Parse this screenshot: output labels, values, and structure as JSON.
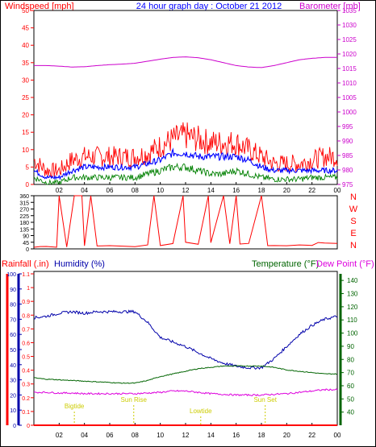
{
  "header": {
    "left_title": "Windspeed [mph]",
    "center_title": "24 hour graph day : October 21 2012",
    "right_title": "Barometer [mb]"
  },
  "middle": {
    "direction_labels": [
      "N",
      "W",
      "S",
      "E",
      "N"
    ]
  },
  "bottom_header": {
    "rainfall_label": "Rainfall (.in)",
    "humidity_label": "Humidity (%)",
    "temperature_label": "Temperature (°F)",
    "dewpoint_label": "Dew Point (°F)"
  },
  "events": [
    {
      "label": "Sun Rise",
      "hour": 7.9
    },
    {
      "label": "Sun Set",
      "hour": 18.3
    },
    {
      "label": "Bigtide",
      "hour": 3.2
    },
    {
      "label": "Lowtide",
      "hour": 13.2
    }
  ],
  "colors": {
    "wind_gust": "#ff0000",
    "wind_avg": "#0000ff",
    "wind_low": "#008000",
    "barometer": "#cc00cc",
    "direction": "#ff0000",
    "humidity": "#0000aa",
    "temperature": "#006400",
    "dewpoint": "#dd00dd",
    "rainfall": "#ff0000",
    "event": "#cccc00"
  },
  "chart_data": [
    {
      "type": "line",
      "title": "24 hour graph day : October 21 2012",
      "x_ticks": [
        "02",
        "04",
        "06",
        "08",
        "10",
        "12",
        "14",
        "16",
        "18",
        "20",
        "22",
        "00"
      ],
      "xlim": [
        0,
        24
      ],
      "left_axis": {
        "label": "Windspeed [mph]",
        "ylim": [
          0,
          50
        ],
        "ticks": [
          0,
          5,
          10,
          15,
          20,
          25,
          30,
          35,
          40,
          45,
          50
        ]
      },
      "right_axis": {
        "label": "Barometer [mb]",
        "ylim": [
          975,
          1035
        ],
        "ticks": [
          975,
          980,
          985,
          990,
          995,
          1000,
          1005,
          1010,
          1015,
          1020,
          1025,
          1030,
          1035
        ]
      },
      "grid": false,
      "series": [
        {
          "axis": "left",
          "x": [
            0,
            1,
            2,
            3,
            4,
            5,
            6,
            7,
            8,
            9,
            10,
            11,
            12,
            13,
            14,
            15,
            16,
            17,
            18,
            19,
            20,
            21,
            22,
            23,
            24
          ],
          "values": [
            7,
            4,
            4,
            7,
            8,
            8,
            8,
            8,
            8,
            9,
            11,
            13,
            14,
            13,
            12,
            12,
            12,
            10,
            8,
            6,
            6,
            6,
            7,
            8,
            8
          ]
        },
        {
          "axis": "left",
          "x": [
            0,
            1,
            2,
            3,
            4,
            5,
            6,
            7,
            8,
            9,
            10,
            11,
            12,
            13,
            14,
            15,
            16,
            17,
            18,
            19,
            20,
            21,
            22,
            23,
            24
          ],
          "values": [
            4,
            2,
            2,
            4,
            5,
            5,
            5,
            5,
            5,
            6,
            7,
            9,
            9,
            8,
            8,
            8,
            8,
            7,
            5,
            4,
            4,
            4,
            4,
            4,
            4
          ]
        },
        {
          "axis": "left",
          "x": [
            0,
            1,
            2,
            3,
            4,
            5,
            6,
            7,
            8,
            9,
            10,
            11,
            12,
            13,
            14,
            15,
            16,
            17,
            18,
            19,
            20,
            21,
            22,
            23,
            24
          ],
          "values": [
            2,
            0.5,
            0.5,
            2,
            2,
            2,
            2,
            2,
            2,
            3,
            4,
            5,
            5,
            4,
            3,
            3,
            4,
            3,
            2,
            1.5,
            1.5,
            1.5,
            2,
            2,
            2
          ]
        },
        {
          "axis": "right",
          "x": [
            0,
            1,
            2,
            3,
            4,
            5,
            6,
            7,
            8,
            9,
            10,
            11,
            12,
            13,
            14,
            15,
            16,
            17,
            18,
            19,
            20,
            21,
            22,
            23,
            24
          ],
          "values": [
            1016,
            1016,
            1015.8,
            1015.5,
            1015.6,
            1016,
            1016.3,
            1016.5,
            1016.8,
            1017.5,
            1018.2,
            1018.8,
            1019,
            1018.7,
            1018,
            1017,
            1016,
            1015.5,
            1015.3,
            1016,
            1017,
            1018,
            1018.5,
            1018.8,
            1018.8
          ]
        }
      ]
    },
    {
      "type": "line",
      "xlim": [
        0,
        24
      ],
      "ylim": [
        0,
        360
      ],
      "y_ticks": [
        0,
        45,
        90,
        135,
        180,
        225,
        270,
        315,
        360
      ],
      "x_ticks": [],
      "grid": false,
      "series": [
        {
          "x": [
            0,
            0.5,
            1,
            1.8,
            2,
            2.6,
            3.2,
            3.8,
            4,
            4.5,
            5,
            6,
            7,
            8,
            9,
            9.5,
            10,
            11,
            11.8,
            12,
            13,
            13.8,
            14,
            15,
            15.5,
            16,
            16.3,
            17,
            18,
            18.5,
            19,
            20,
            21,
            22,
            22.5,
            23,
            24
          ],
          "values": [
            10,
            10,
            10,
            10,
            360,
            10,
            360,
            360,
            20,
            360,
            15,
            15,
            15,
            15,
            20,
            360,
            20,
            30,
            360,
            40,
            30,
            360,
            40,
            360,
            30,
            360,
            30,
            30,
            360,
            20,
            20,
            20,
            20,
            20,
            40,
            40,
            35
          ]
        }
      ]
    },
    {
      "type": "line",
      "xlim": [
        0,
        24
      ],
      "x_ticks": [
        "02",
        "04",
        "06",
        "08",
        "10",
        "12",
        "14",
        "16",
        "18",
        "20",
        "22",
        "00"
      ],
      "grid": false,
      "axes": {
        "humidity": {
          "label": "Humidity (%)",
          "ylim": [
            0,
            100
          ],
          "ticks": [
            0,
            10,
            20,
            30,
            40,
            50,
            60,
            70,
            80,
            90,
            100
          ]
        },
        "rainfall": {
          "label": "Rainfall (.in)",
          "ylim": [
            0,
            1.1
          ],
          "ticks": [
            0,
            0.1,
            0.2,
            0.3,
            0.4,
            0.5,
            0.6,
            0.7,
            0.8,
            0.9,
            1,
            1.1
          ]
        },
        "temperature": {
          "label": "Temperature (°F)",
          "ylim": [
            30,
            145
          ],
          "ticks": [
            40,
            50,
            60,
            70,
            80,
            90,
            100,
            110,
            120,
            130,
            140
          ]
        }
      },
      "series": [
        {
          "axis": "humidity",
          "x": [
            0,
            1,
            2,
            3,
            4,
            5,
            6,
            7,
            8,
            9,
            10,
            11,
            12,
            13,
            14,
            15,
            16,
            17,
            18,
            19,
            20,
            21,
            22,
            23,
            24
          ],
          "values": [
            71,
            72,
            74,
            75,
            74,
            75,
            75,
            75,
            75,
            68,
            58,
            55,
            52,
            48,
            44,
            41,
            39,
            38,
            38,
            44,
            52,
            60,
            66,
            70,
            72
          ]
        },
        {
          "axis": "temperature",
          "x": [
            0,
            1,
            2,
            3,
            4,
            5,
            6,
            7,
            8,
            9,
            10,
            11,
            12,
            13,
            14,
            15,
            16,
            17,
            18,
            19,
            20,
            21,
            22,
            23,
            24
          ],
          "values": [
            66,
            65,
            64.5,
            64,
            63.5,
            63,
            62.5,
            62,
            62,
            64,
            67,
            69,
            71,
            73,
            74,
            75,
            75,
            75,
            75,
            74,
            72,
            71,
            70,
            69,
            69
          ]
        },
        {
          "axis": "temperature",
          "x": [
            0,
            1,
            2,
            3,
            4,
            5,
            6,
            7,
            8,
            9,
            10,
            11,
            12,
            13,
            14,
            15,
            16,
            17,
            18,
            19,
            20,
            21,
            22,
            23,
            24
          ],
          "values": [
            55,
            55,
            54.5,
            54.5,
            54,
            54,
            54,
            54,
            54,
            54.5,
            55,
            56,
            56,
            55,
            54,
            53.5,
            53,
            53,
            53,
            53.5,
            54,
            55,
            56,
            57,
            57
          ]
        },
        {
          "axis": "rainfall",
          "x": [
            0,
            24
          ],
          "values": [
            0,
            0
          ]
        }
      ]
    }
  ]
}
